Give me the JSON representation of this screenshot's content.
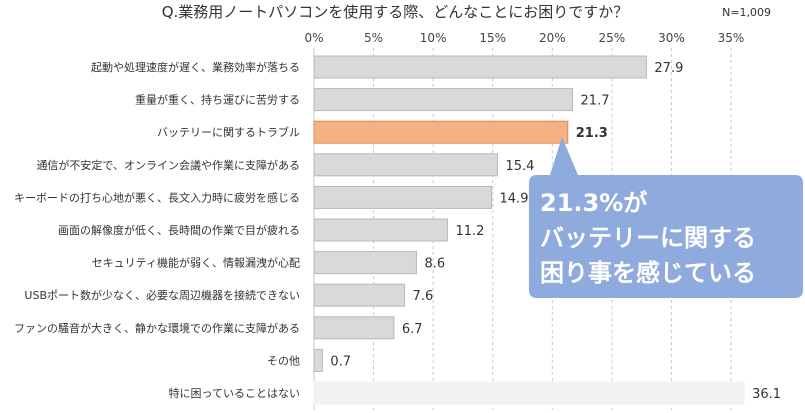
{
  "chart_data": {
    "type": "bar",
    "orientation": "horizontal",
    "title": "Q.業務用ノートパソコンを使用する際、どんなことにお困りですか？",
    "sample_size": "N=1,009",
    "xlim": [
      0,
      35
    ],
    "ticks": [
      "0%",
      "5%",
      "10%",
      "15%",
      "20%",
      "25%",
      "30%",
      "35%"
    ],
    "grid": "vertical dashed",
    "categories": [
      "起動や処理速度が遅く、業務効率が落ちる",
      "重量が重く、持ち運びに苦労する",
      "バッテリーに関するトラブル",
      "通信が不安定で、オンライン会議や作業に支障がある",
      "キーボードの打ち心地が悪く、長文入力時に疲労を感じる",
      "画面の解像度が低く、長時間の作業で目が疲れる",
      "セキュリティ機能が弱く、情報漏洩が心配",
      "USBポート数が少なく、必要な周辺機器を接続できない",
      "ファンの騒音が大きく、静かな環境での作業に支障がある",
      "その他",
      "特に困っていることはない"
    ],
    "values": [
      27.9,
      21.7,
      21.3,
      15.4,
      14.9,
      11.2,
      8.6,
      7.6,
      6.7,
      0.7,
      36.1
    ],
    "value_labels": [
      "27.9",
      "21.7",
      "21.3",
      "15.4",
      "14.9",
      "11.2",
      "8.6",
      "7.6",
      "6.7",
      "0.7",
      "36.1"
    ],
    "highlight_index": 2,
    "annotation": [
      "21.3%が",
      "バッテリーに関する",
      "困り事を感じている"
    ]
  },
  "colors": {
    "bar": "#d9d9d9",
    "bar_stroke": "#b8b8b8",
    "bar_last": "#f2f2f2",
    "highlight": "#f4b183",
    "highlight_stroke": "#e08a50",
    "highlight_text": "#e07b2f",
    "callout": "#8faadc",
    "grid": "#c8c8c8"
  }
}
